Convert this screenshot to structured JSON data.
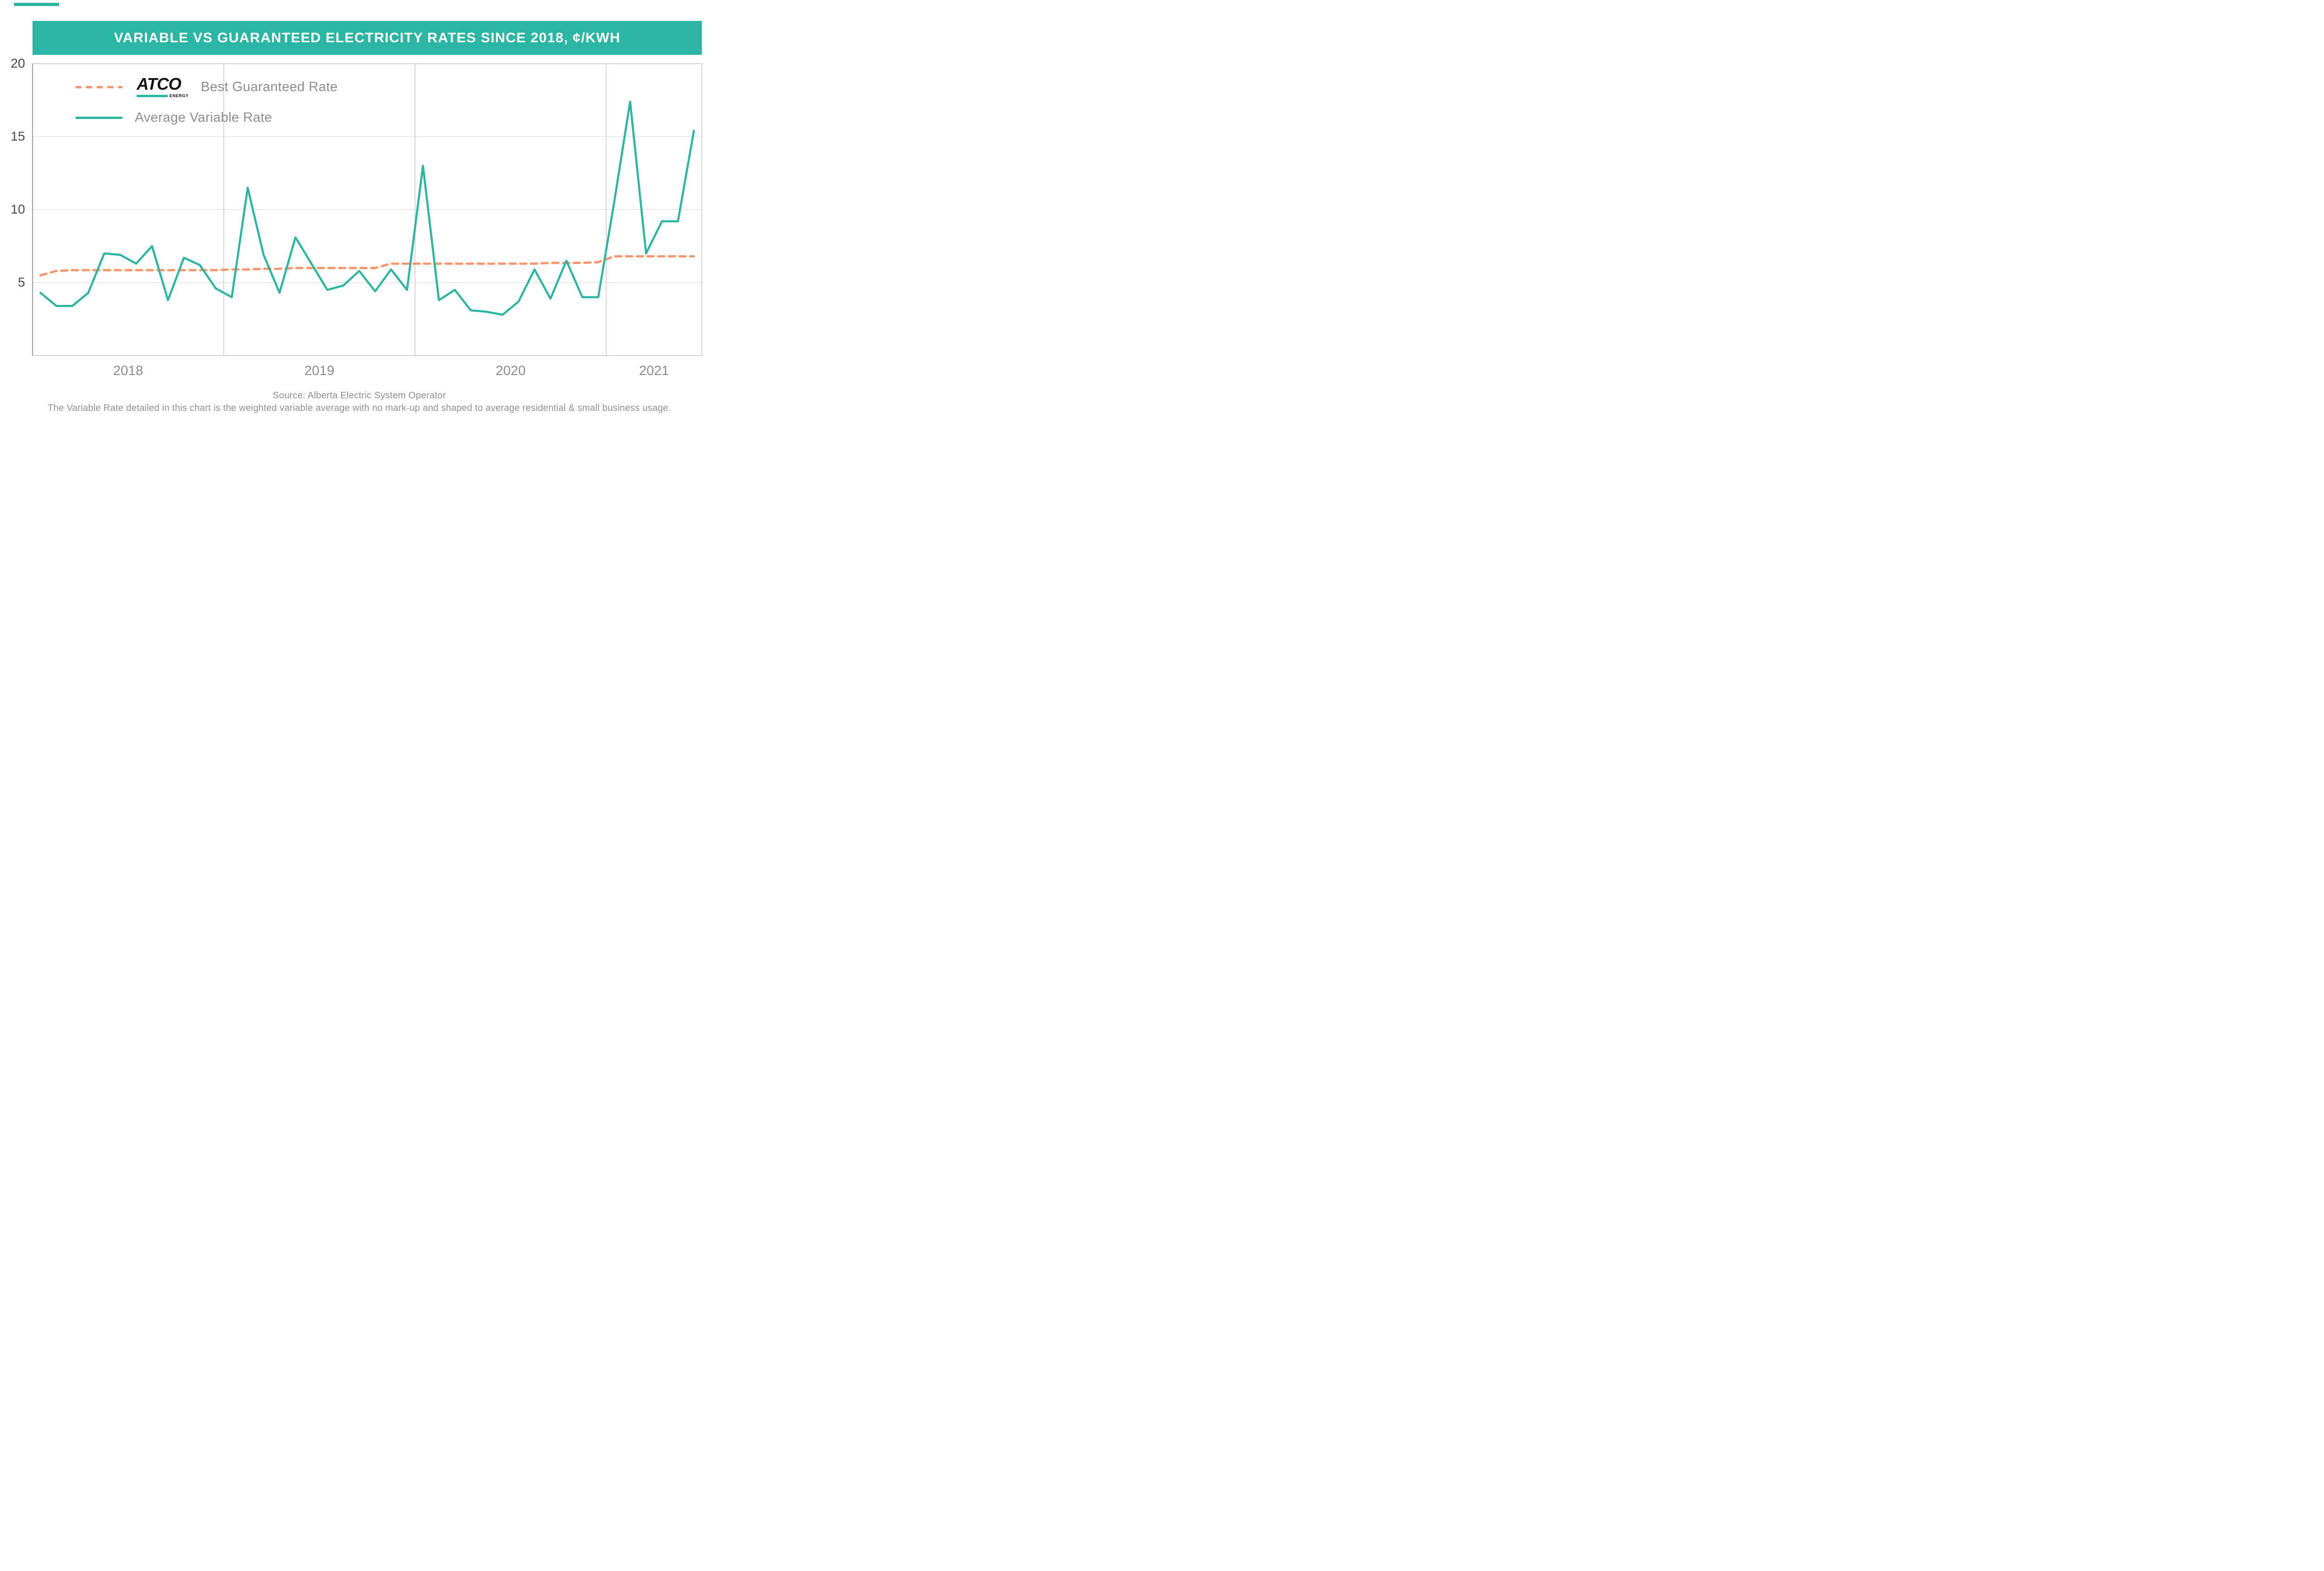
{
  "colors": {
    "teal": "#2BB5A3",
    "orange": "#F8976B",
    "grid": "#E0E0E0",
    "border": "#C7C7C7",
    "axis": "#9C9C9C",
    "tick_text": "#4A4A4A",
    "year_text": "#8C8C8C"
  },
  "legend": {
    "guaranteed_label": "Best Guaranteed Rate",
    "variable_label": "Average Variable Rate",
    "logo": {
      "brand": "ATCO",
      "sub": "ENERGY"
    }
  },
  "footer": {
    "source": "Source: Alberta Electric System Operator",
    "note": "The Variable Rate detailed in this chart is the weighted variable average with no mark-up and shaped to average residential & small business usage."
  },
  "chart_data": {
    "type": "line",
    "title": "VARIABLE VS GUARANTEED ELECTRICITY RATES SINCE 2018, ¢/KWH",
    "xlabel": "",
    "ylabel": "¢/kWh",
    "ylim": [
      0,
      20
    ],
    "y_ticks": [
      5,
      10,
      15,
      20
    ],
    "x_tick_labels": [
      "2018",
      "2019",
      "2020",
      "2021"
    ],
    "grid": true,
    "legend_position": "top-left inside",
    "x": [
      "2018-01",
      "2018-02",
      "2018-03",
      "2018-04",
      "2018-05",
      "2018-06",
      "2018-07",
      "2018-08",
      "2018-09",
      "2018-10",
      "2018-11",
      "2018-12",
      "2019-01",
      "2019-02",
      "2019-03",
      "2019-04",
      "2019-05",
      "2019-06",
      "2019-07",
      "2019-08",
      "2019-09",
      "2019-10",
      "2019-11",
      "2019-12",
      "2020-01",
      "2020-02",
      "2020-03",
      "2020-04",
      "2020-05",
      "2020-06",
      "2020-07",
      "2020-08",
      "2020-09",
      "2020-10",
      "2020-11",
      "2020-12",
      "2021-01",
      "2021-02",
      "2021-03",
      "2021-04",
      "2021-05",
      "2021-06"
    ],
    "series": [
      {
        "name": "Best Guaranteed Rate",
        "color": "#F8976B",
        "style": "dashed",
        "values": [
          5.5,
          5.8,
          5.85,
          5.85,
          5.85,
          5.85,
          5.85,
          5.85,
          5.85,
          5.85,
          5.85,
          5.85,
          5.9,
          5.9,
          5.95,
          5.95,
          6.0,
          6.0,
          6.0,
          6.0,
          6.0,
          6.0,
          6.3,
          6.3,
          6.3,
          6.3,
          6.3,
          6.3,
          6.3,
          6.3,
          6.3,
          6.3,
          6.35,
          6.35,
          6.35,
          6.4,
          6.8,
          6.8,
          6.8,
          6.8,
          6.8,
          6.8
        ]
      },
      {
        "name": "Average Variable Rate",
        "color": "#2BB5A3",
        "style": "solid",
        "values": [
          4.3,
          3.4,
          3.4,
          4.3,
          7.0,
          6.9,
          6.3,
          7.5,
          3.8,
          6.7,
          6.2,
          4.6,
          4.0,
          11.5,
          6.9,
          4.3,
          8.1,
          6.3,
          4.5,
          4.8,
          5.8,
          4.4,
          5.9,
          4.5,
          13.0,
          3.8,
          4.5,
          3.1,
          3.0,
          2.8,
          3.7,
          5.9,
          3.9,
          6.5,
          4.0,
          4.0,
          10.5,
          17.4,
          7.0,
          9.2,
          9.2,
          15.4
        ]
      }
    ]
  }
}
